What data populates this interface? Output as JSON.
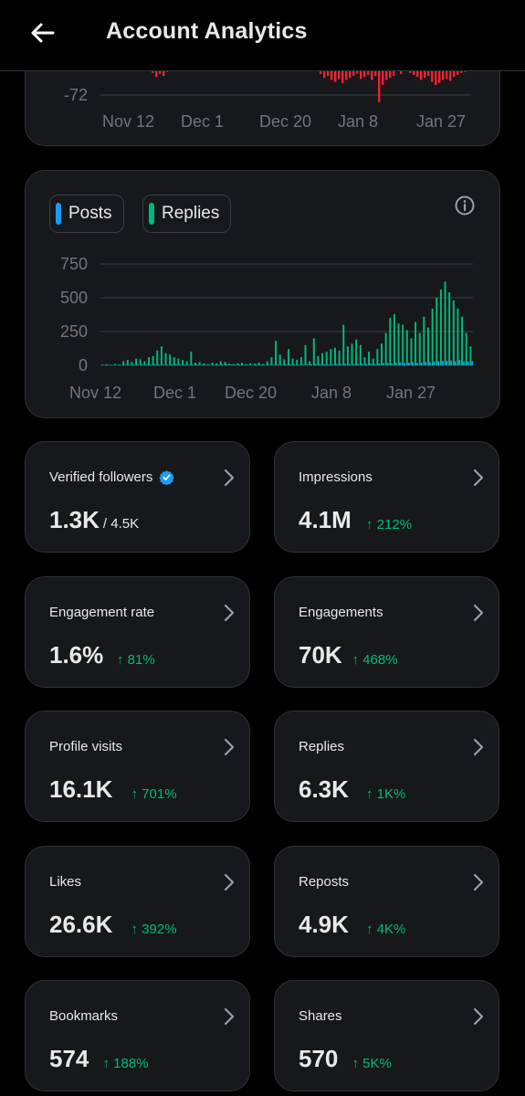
{
  "header": {
    "title": "Account Analytics"
  },
  "top_chart": {
    "y_tick_label": "-72",
    "x_labels": [
      "Nov 12",
      "Dec 1",
      "Dec 20",
      "Jan 8",
      "Jan 27"
    ]
  },
  "legend": {
    "posts_label": "Posts",
    "replies_label": "Replies",
    "posts_color": "#1d9bf0",
    "replies_color": "#00ba7c"
  },
  "chart_data": {
    "type": "bar",
    "x_tick_labels": [
      "Nov 12",
      "Dec 1",
      "Dec 20",
      "Jan 8",
      "Jan 27"
    ],
    "y_tick_labels": [
      "750",
      "500",
      "250",
      "0"
    ],
    "ylim": [
      0,
      750
    ],
    "series": [
      {
        "name": "Posts",
        "color": "#1d9bf0",
        "values": [
          2,
          2,
          1,
          3,
          2,
          4,
          3,
          5,
          3,
          6,
          5,
          4,
          8,
          6,
          5,
          4,
          7,
          9,
          5,
          6,
          5,
          4,
          6,
          5,
          4,
          3,
          5,
          4,
          6,
          8,
          5,
          4,
          6,
          5,
          4,
          3,
          5,
          6,
          4,
          5,
          4,
          6,
          5,
          7,
          6,
          5,
          4,
          5,
          6,
          7,
          9,
          8,
          7,
          6,
          8,
          9,
          10,
          12,
          9,
          8,
          10,
          11,
          9,
          12,
          10,
          14,
          16,
          18,
          15,
          20,
          22,
          18,
          20,
          24,
          18,
          22,
          26,
          24,
          28,
          30,
          32,
          34,
          36,
          30,
          40,
          30,
          28,
          32
        ]
      },
      {
        "name": "Replies",
        "color": "#00ba7c",
        "values": [
          5,
          8,
          4,
          10,
          6,
          30,
          40,
          25,
          50,
          45,
          30,
          60,
          70,
          110,
          140,
          90,
          80,
          60,
          50,
          40,
          30,
          100,
          20,
          25,
          15,
          10,
          20,
          15,
          30,
          25,
          12,
          10,
          15,
          20,
          10,
          15,
          12,
          20,
          10,
          30,
          60,
          180,
          80,
          45,
          120,
          50,
          40,
          60,
          150,
          30,
          200,
          70,
          90,
          100,
          120,
          130,
          110,
          300,
          140,
          160,
          190,
          150,
          60,
          100,
          50,
          120,
          160,
          240,
          350,
          380,
          310,
          300,
          260,
          200,
          320,
          240,
          360,
          280,
          420,
          500,
          560,
          620,
          540,
          480,
          420,
          360,
          240,
          140
        ]
      }
    ]
  },
  "stats": [
    {
      "label": "Verified followers",
      "value": "1.3K",
      "sub": "/ 4.5K",
      "change": "",
      "verified": true
    },
    {
      "label": "Impressions",
      "value": "4.1M",
      "sub": "",
      "change": "↑ 212%"
    },
    {
      "label": "Engagement rate",
      "value": "1.6%",
      "sub": "",
      "change": "↑ 81%"
    },
    {
      "label": "Engagements",
      "value": "70K",
      "sub": "",
      "change": "↑ 468%"
    },
    {
      "label": "Profile visits",
      "value": "16.1K",
      "sub": "",
      "change": "↑ 701%"
    },
    {
      "label": "Replies",
      "value": "6.3K",
      "sub": "",
      "change": "↑ 1K%"
    },
    {
      "label": "Likes",
      "value": "26.6K",
      "sub": "",
      "change": "↑ 392%"
    },
    {
      "label": "Reposts",
      "value": "4.9K",
      "sub": "",
      "change": "↑ 4K%"
    },
    {
      "label": "Bookmarks",
      "value": "574",
      "sub": "",
      "change": "↑ 188%"
    },
    {
      "label": "Shares",
      "value": "570",
      "sub": "",
      "change": "↑ 5K%"
    }
  ]
}
